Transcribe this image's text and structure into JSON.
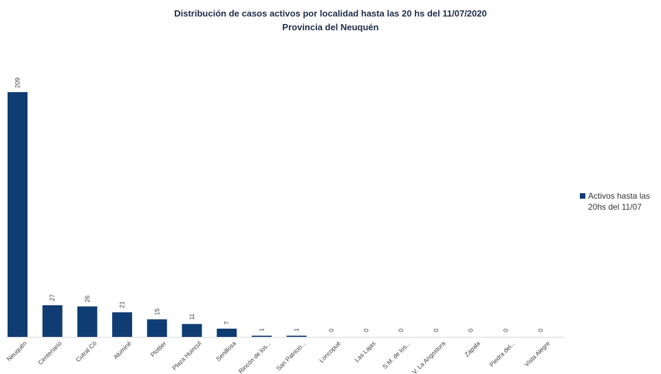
{
  "chart_data": {
    "type": "bar",
    "title": "Distribución de casos activos por localidad hasta las 20  hs del 11/07/2020",
    "subtitle": "Provincia del Neuquén",
    "categories": [
      "Neuquén",
      "Centenario",
      "Cutral Có",
      "Aluminé",
      "Plottier",
      "Plaza Huincul",
      "Senillosa",
      "Rincón de los...",
      "San Patricio...",
      "Loncopué",
      "Las Lajas",
      "S.M. de los...",
      "V. La Angostura",
      "Zapala",
      "Piedra del...",
      "Vista Alegre"
    ],
    "series": [
      {
        "name": "Activos hasta las 20hs del 11/07",
        "values": [
          209,
          27,
          26,
          21,
          15,
          11,
          7,
          1,
          1,
          0,
          0,
          0,
          0,
          0,
          0,
          0
        ],
        "color": "#0f3c73"
      }
    ],
    "ylim": [
      0,
      209
    ],
    "grid": false,
    "legend_position": "right"
  }
}
